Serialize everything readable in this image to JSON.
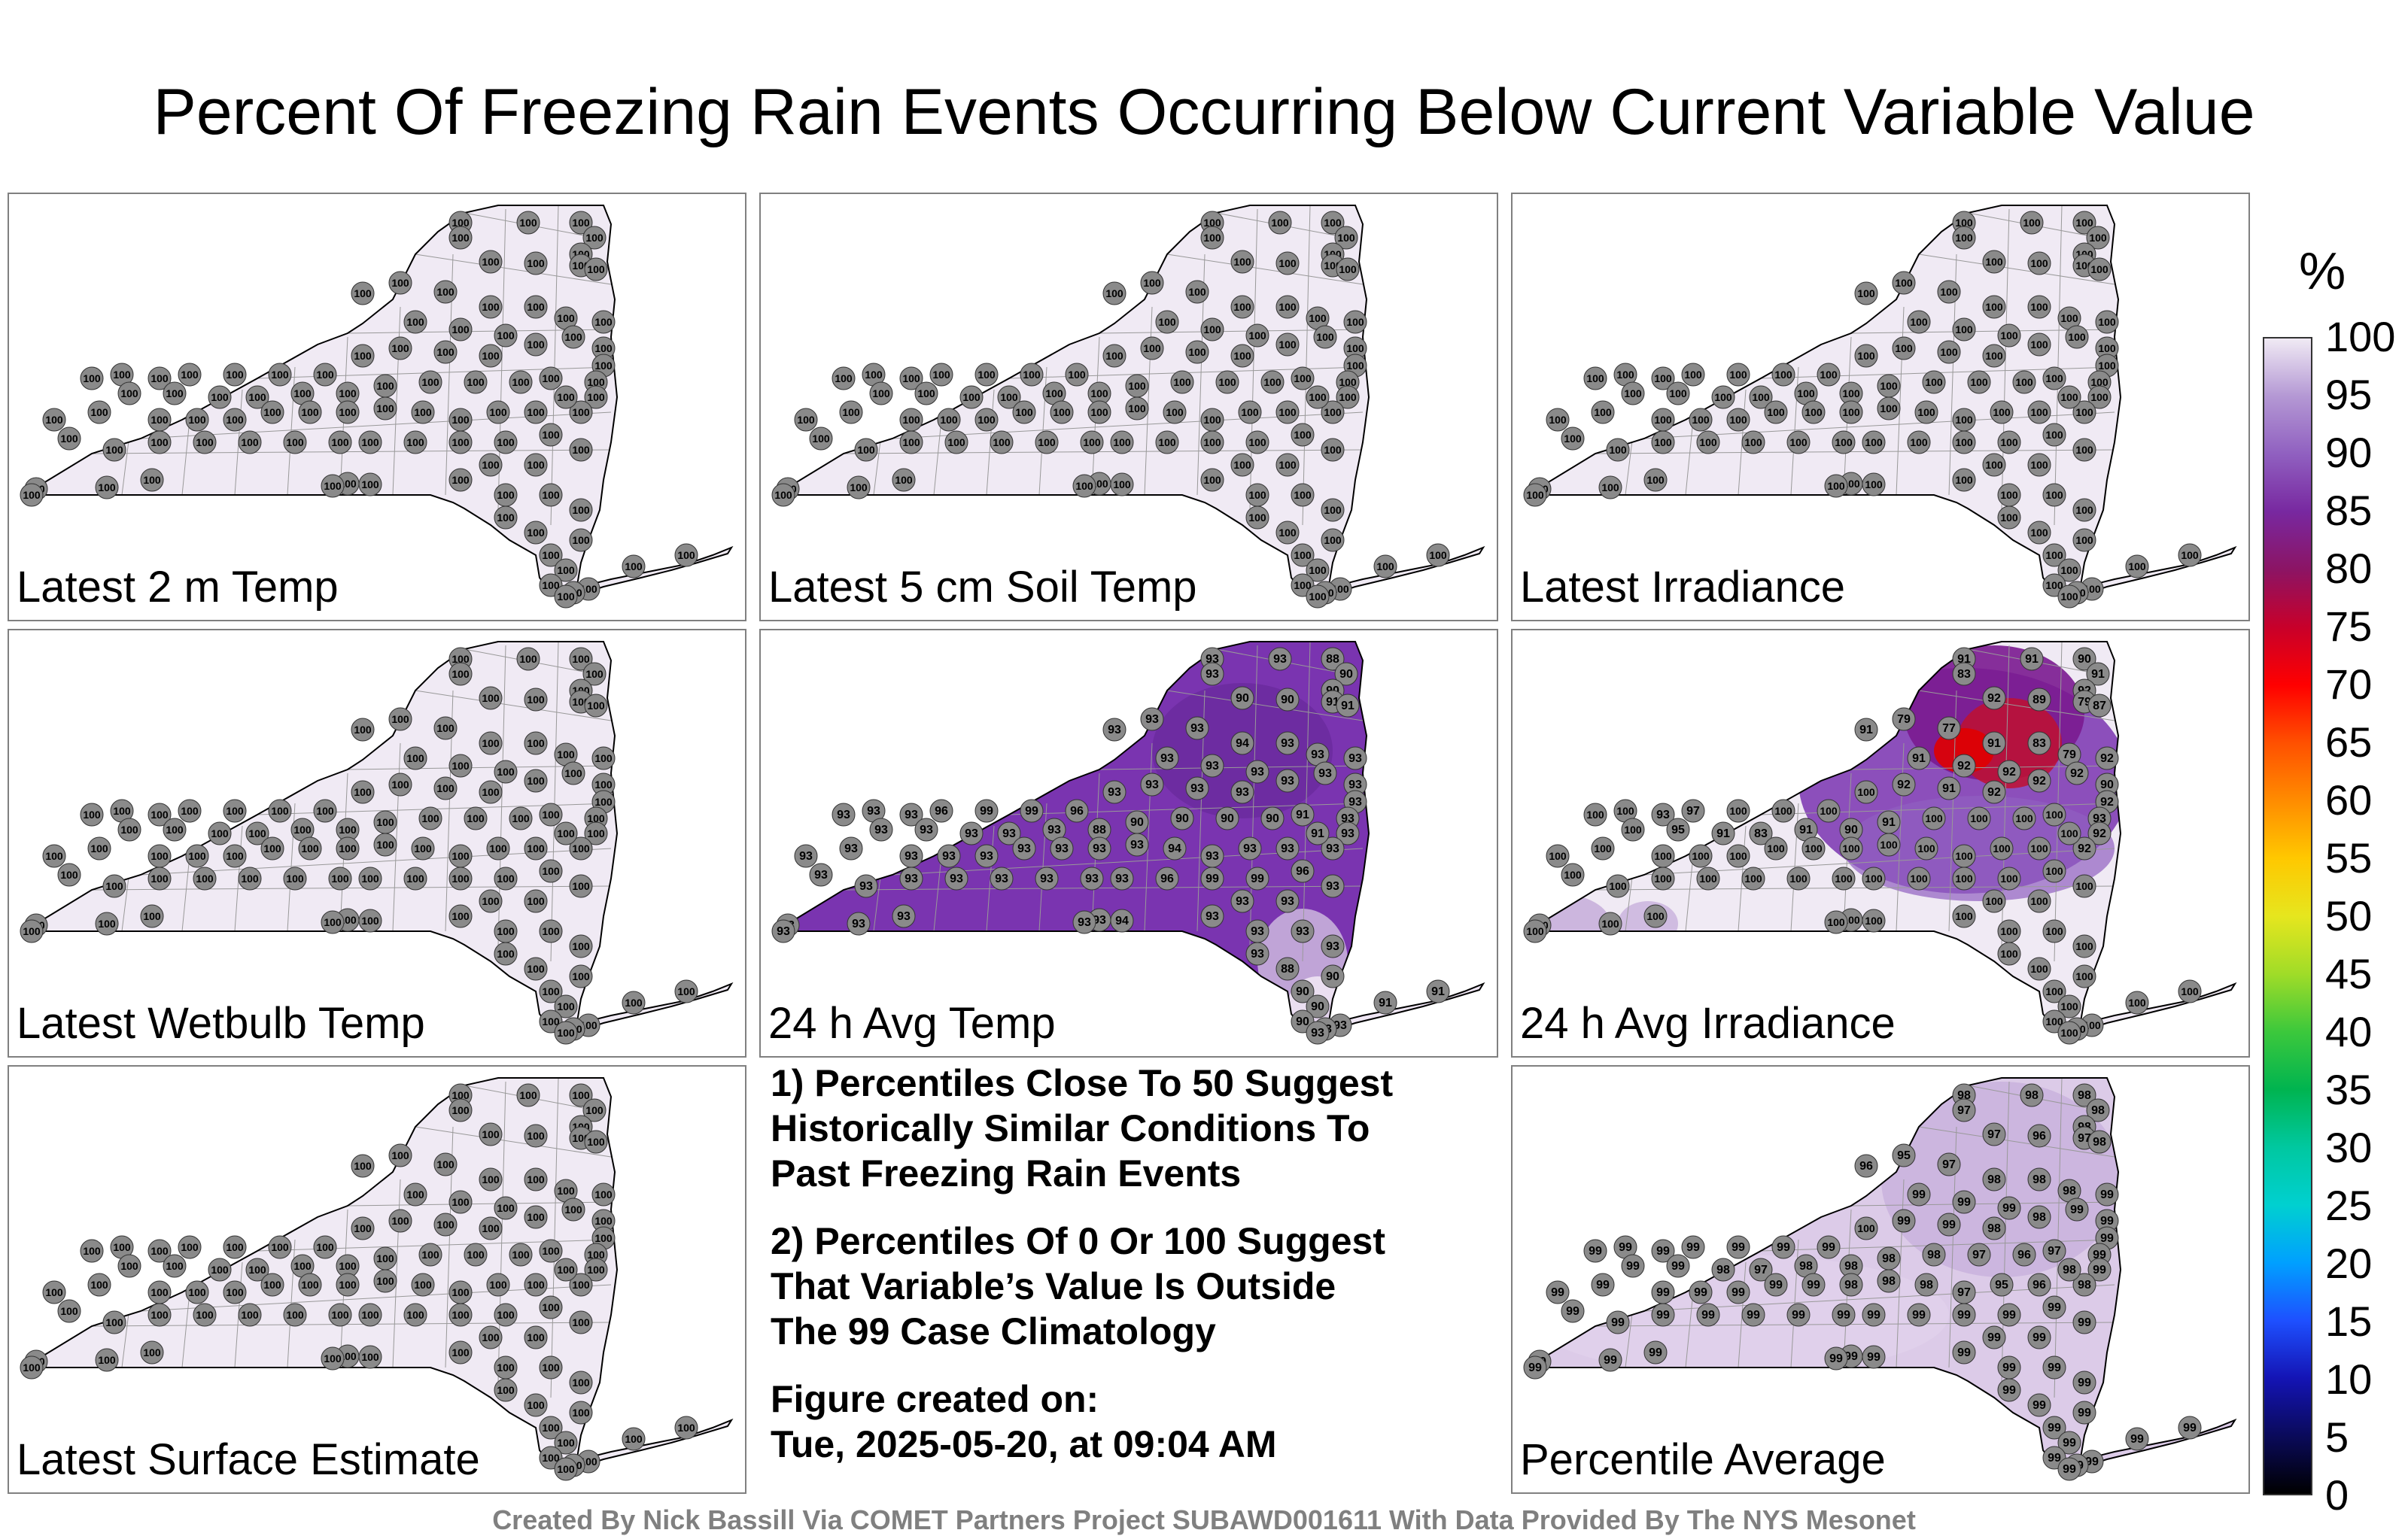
{
  "title": "Percent Of Freezing Rain Events Occurring Below Current Variable Value",
  "panels": [
    {
      "id": "p1",
      "label": "Latest 2 m Temp",
      "mode": "flat",
      "fill": "#f0eaf4",
      "values": []
    },
    {
      "id": "p2",
      "label": "Latest 5 cm Soil Temp",
      "mode": "flat",
      "fill": "#f0eaf4",
      "values": []
    },
    {
      "id": "p3",
      "label": "Latest Irradiance",
      "mode": "flat",
      "fill": "#f0eaf4",
      "values": []
    },
    {
      "id": "p4",
      "label": "Latest Wetbulb Temp",
      "mode": "flat",
      "fill": "#f0eaf4",
      "values": []
    },
    {
      "id": "p5",
      "label": "24 h Avg Temp",
      "mode": "avgtemp",
      "fill": "#7a34b0",
      "values": []
    },
    {
      "id": "p6",
      "label": "24 h Avg Irradiance",
      "mode": "avgirr",
      "fill": "#f0eaf4",
      "values": []
    },
    {
      "id": "p7",
      "label": "Latest Surface Estimate",
      "mode": "flat",
      "fill": "#f0eaf4",
      "values": []
    },
    {
      "id": "p9",
      "label": "Percentile Average",
      "mode": "avg",
      "fill": "#dccbe8",
      "values": []
    }
  ],
  "notes": {
    "note1_line1": "1) Percentiles Close To 50 Suggest",
    "note1_line2": "Historically Similar Conditions To",
    "note1_line3": "Past Freezing Rain Events",
    "note2_line1": "2) Percentiles Of 0 Or 100 Suggest",
    "note2_line2": "That Variable’s Value Is Outside",
    "note2_line3": "The 99 Case Climatology",
    "created_label": "Figure created on:",
    "created_value": "Tue, 2025-05-20, at 09:04 AM"
  },
  "colorbar": {
    "unit": "%",
    "ticks": [
      "100",
      "95",
      "90",
      "85",
      "80",
      "75",
      "70",
      "65",
      "60",
      "55",
      "50",
      "45",
      "40",
      "35",
      "30",
      "25",
      "20",
      "15",
      "10",
      "5",
      "0"
    ],
    "colors": [
      "#000000",
      "#0a0a5a",
      "#1414b4",
      "#1e50ff",
      "#00a0ff",
      "#00d0d0",
      "#00c8a0",
      "#00b450",
      "#3cc83c",
      "#a0dc28",
      "#e6e61e",
      "#ffc800",
      "#ff8c00",
      "#ff5000",
      "#ff0000",
      "#c8002a",
      "#8c1464",
      "#7828a0",
      "#9060c0",
      "#b498d4",
      "#f0eaf4"
    ]
  },
  "footer": "Created By Nick Bassill Via COMET Partners Project SUBAWD001611 With Data Provided By The NYS Mesonet",
  "station_values": {
    "p5": [
      "93",
      "93",
      "93",
      "88",
      "90",
      "90",
      "90",
      "90",
      "91",
      "91",
      "93",
      "93",
      "93",
      "94",
      "93",
      "93",
      "93",
      "93",
      "93",
      "93",
      "93",
      "93",
      "93",
      "93",
      "93",
      "93",
      "93",
      "93",
      "93",
      "93",
      "93",
      "96",
      "99",
      "99",
      "96",
      "93",
      "93",
      "93",
      "93",
      "93"
    ],
    "p6": [
      "91",
      "83",
      "91",
      "90",
      "91",
      "92",
      "92",
      "89",
      "79",
      "87",
      "91",
      "79",
      "77",
      "91",
      "83",
      "79",
      "92",
      "91",
      "92",
      "92",
      "92",
      "90",
      "92",
      "93",
      "92",
      "92",
      "92",
      "92",
      "91",
      "92",
      "100",
      "100",
      "100",
      "100",
      "97",
      "93",
      "100",
      "100",
      "100",
      "95"
    ],
    "p9": [
      "98",
      "97",
      "98",
      "98",
      "98",
      "98",
      "97",
      "96",
      "97",
      "98",
      "96",
      "95",
      "97",
      "98",
      "98",
      "98",
      "99",
      "99",
      "99",
      "99",
      "99",
      "99",
      "99",
      "99",
      "99",
      "98",
      "98",
      "98",
      "99",
      "99",
      "100",
      "99",
      "99",
      "99",
      "99",
      "99",
      "99",
      "99",
      "99",
      "99"
    ]
  }
}
